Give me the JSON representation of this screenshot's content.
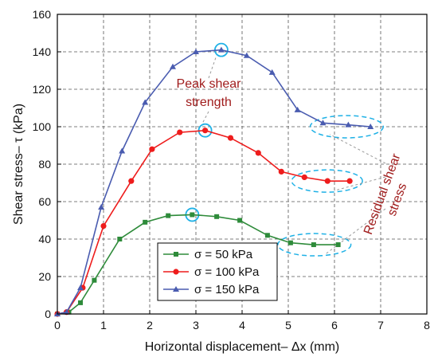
{
  "chart_data": {
    "type": "line",
    "xlabel": "Horizontal displacement– Δx (mm)",
    "ylabel": "Shear stress– τ (kPa)",
    "xlim": [
      0,
      8
    ],
    "ylim": [
      0,
      160
    ],
    "xticks": [
      "0",
      "1",
      "2",
      "3",
      "4",
      "5",
      "6",
      "7",
      "8"
    ],
    "yticks": [
      "0",
      "20",
      "40",
      "60",
      "80",
      "100",
      "120",
      "140",
      "160"
    ],
    "grid": true,
    "legend_position": "bottom-center",
    "series": [
      {
        "name": "σ = 50 kPa",
        "color": "#2e8b3a",
        "marker": "square",
        "x": [
          0,
          0.25,
          0.5,
          0.8,
          1.35,
          1.9,
          2.4,
          2.92,
          3.45,
          3.95,
          4.55,
          5.05,
          5.55,
          6.08
        ],
        "y": [
          0,
          1,
          6,
          18,
          40,
          49,
          52.5,
          53,
          52,
          50,
          42,
          38,
          37,
          37
        ]
      },
      {
        "name": "σ = 100 kPa",
        "color": "#ee1c1c",
        "marker": "circle",
        "x": [
          0,
          0.2,
          0.55,
          1.0,
          1.6,
          2.05,
          2.65,
          3.2,
          3.75,
          4.35,
          4.85,
          5.35,
          5.85,
          6.33
        ],
        "y": [
          0,
          1,
          14,
          47,
          71,
          88,
          97,
          98,
          94,
          86,
          76,
          73,
          71,
          71
        ]
      },
      {
        "name": "σ = 150 kPa",
        "color": "#4a5cb0",
        "marker": "triangle",
        "x": [
          0,
          0.2,
          0.5,
          0.95,
          1.4,
          1.9,
          2.5,
          3.0,
          3.55,
          4.1,
          4.65,
          5.2,
          5.75,
          6.3,
          6.78
        ],
        "y": [
          0,
          1,
          14,
          57,
          87,
          113,
          132,
          140,
          141,
          138,
          129,
          109,
          102,
          101,
          100
        ]
      }
    ],
    "annotations": {
      "peak": [
        "Peak shear",
        "strength"
      ],
      "residual": [
        "Residual shear",
        "stress"
      ]
    }
  }
}
